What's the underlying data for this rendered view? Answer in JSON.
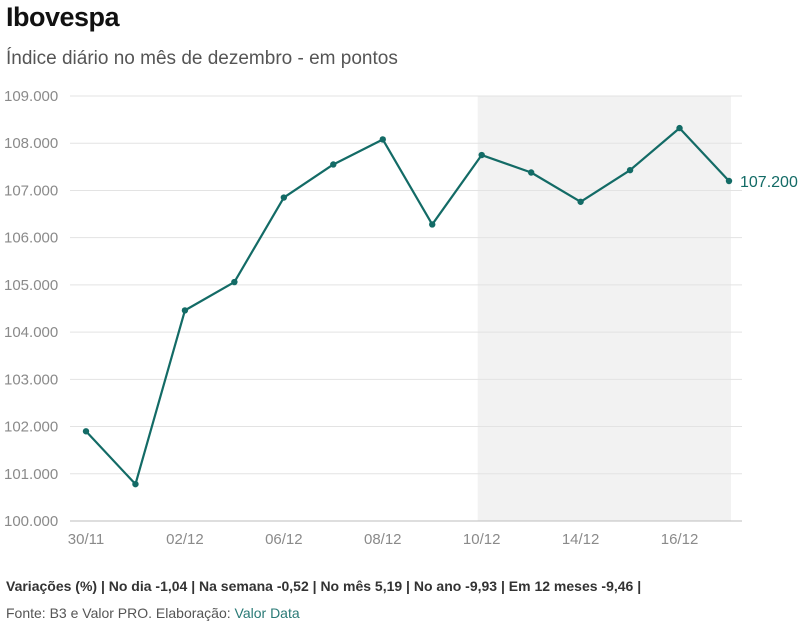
{
  "header": {
    "title": "Ibovespa",
    "subtitle": "Índice diário no mês de dezembro - em pontos"
  },
  "footer": {
    "variations": "Variações (%) | No dia -1,04 | Na semana -0,52 | No mês 5,19 | No ano -9,93 | Em 12 meses -9,46 |",
    "source_prefix": "Fonte: B3 e Valor PRO. Elaboração: ",
    "source_link": "Valor Data"
  },
  "colors": {
    "line": "#136b66",
    "highlight": "#f2f2f2",
    "grid": "#e3e3e3",
    "axis": "#bdbdbd"
  },
  "chart_data": {
    "type": "line",
    "x": [
      "30/11",
      "01/12",
      "02/12",
      "03/12",
      "06/12",
      "07/12",
      "08/12",
      "09/12",
      "10/12",
      "13/12",
      "14/12",
      "15/12",
      "16/12",
      "17/12"
    ],
    "series": [
      {
        "values": [
          101900,
          100780,
          104460,
          105060,
          106850,
          107550,
          108080,
          106280,
          107750,
          107380,
          106760,
          107430,
          108320,
          107200
        ]
      }
    ],
    "xticks": [
      "30/11",
      "02/12",
      "06/12",
      "08/12",
      "10/12",
      "14/12",
      "16/12"
    ],
    "yticks": [
      "100.000",
      "101.000",
      "102.000",
      "103.000",
      "104.000",
      "105.000",
      "106.000",
      "107.000",
      "108.000",
      "109.000"
    ],
    "ylim": [
      100000,
      109000
    ],
    "end_label": "107.200",
    "highlight_range": [
      "10/12",
      "17/12"
    ],
    "grid": true,
    "title": "Ibovespa",
    "subtitle": "Índice diário no mês de dezembro - em pontos"
  }
}
